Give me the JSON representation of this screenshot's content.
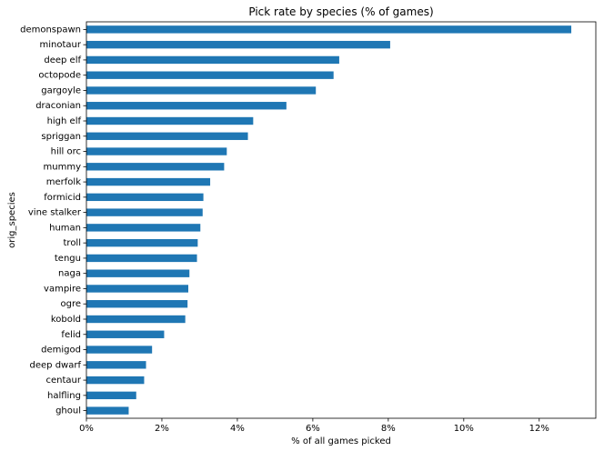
{
  "chart_data": {
    "type": "bar",
    "orientation": "horizontal",
    "title": "Pick rate by species (% of games)",
    "xlabel": "% of all games picked",
    "ylabel": "orig_species",
    "xlim": [
      0,
      13.5
    ],
    "xticks": [
      0,
      2,
      4,
      6,
      8,
      10,
      12
    ],
    "xtick_labels": [
      "0%",
      "2%",
      "4%",
      "6%",
      "8%",
      "10%",
      "12%"
    ],
    "grid": false,
    "legend": "none",
    "bar_color": "#1f77b4",
    "categories": [
      "demonspawn",
      "minotaur",
      "deep elf",
      "octopode",
      "gargoyle",
      "draconian",
      "high elf",
      "spriggan",
      "hill orc",
      "mummy",
      "merfolk",
      "formicid",
      "vine stalker",
      "human",
      "troll",
      "tengu",
      "naga",
      "vampire",
      "ogre",
      "kobold",
      "felid",
      "demigod",
      "deep dwarf",
      "centaur",
      "halfling",
      "ghoul"
    ],
    "values": [
      12.85,
      8.05,
      6.7,
      6.55,
      6.08,
      5.3,
      4.42,
      4.28,
      3.72,
      3.65,
      3.28,
      3.1,
      3.08,
      3.02,
      2.95,
      2.93,
      2.73,
      2.7,
      2.68,
      2.62,
      2.06,
      1.74,
      1.58,
      1.53,
      1.32,
      1.12
    ]
  }
}
